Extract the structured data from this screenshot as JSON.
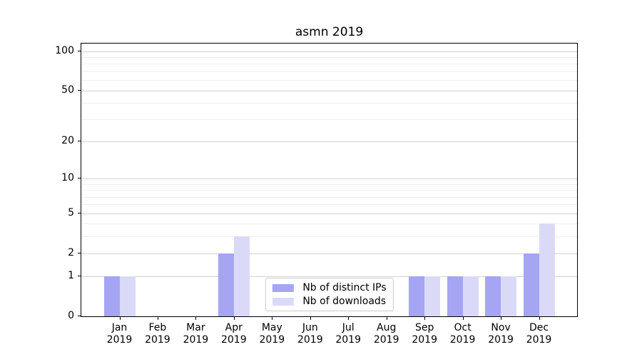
{
  "chart_data": {
    "type": "bar",
    "title": "asmn 2019",
    "categories": [
      "Jan 2019",
      "Feb 2019",
      "Mar 2019",
      "Apr 2019",
      "May 2019",
      "Jun 2019",
      "Jul 2019",
      "Aug 2019",
      "Sep 2019",
      "Oct 2019",
      "Nov 2019",
      "Dec 2019"
    ],
    "series": [
      {
        "name": "Nb of distinct IPs",
        "color": "#a5a5f3",
        "values": [
          1,
          0,
          0,
          2,
          0,
          0,
          0,
          0,
          1,
          1,
          1,
          2
        ]
      },
      {
        "name": "Nb of downloads",
        "color": "#dadaf8",
        "values": [
          1,
          0,
          0,
          3,
          0,
          0,
          0,
          0,
          1,
          1,
          1,
          4
        ]
      }
    ],
    "xlabel": "",
    "ylabel": "",
    "y_axis": {
      "scale": "log10(1+y)",
      "tick_values": [
        0,
        1,
        2,
        5,
        10,
        20,
        50,
        100
      ],
      "tick_labels": [
        "0",
        "1",
        "2",
        "5",
        "10",
        "20",
        "50",
        "100"
      ],
      "minor_gridline_values": [
        3,
        4,
        6,
        7,
        8,
        9,
        30,
        40,
        60,
        70,
        80,
        90
      ],
      "max": 114
    },
    "grid": true,
    "legend": {
      "position": "lower center"
    }
  }
}
